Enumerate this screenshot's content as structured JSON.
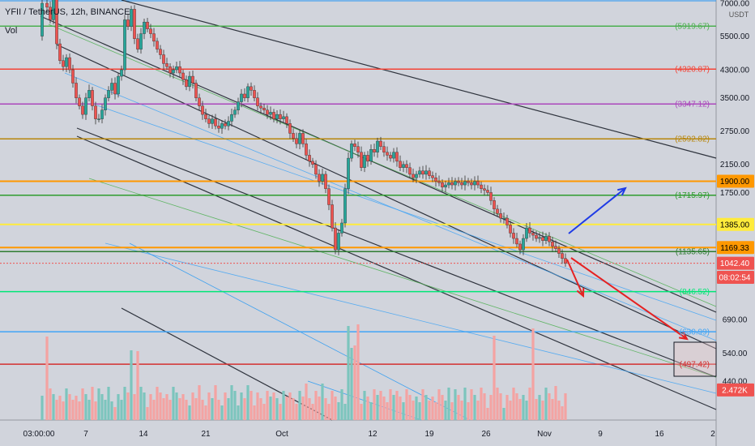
{
  "header": {
    "title": "YFII / TetherUS, 12h, BINANCE",
    "volume_label": "Vol",
    "currency": "USDT"
  },
  "colors": {
    "background": "#d1d4dc",
    "up": "#26a69a",
    "down": "#ef5350",
    "volume_up": "#7cc5bd",
    "volume_down": "#f4a3a2"
  },
  "chart_data": {
    "type": "candlestick",
    "x_axis": {
      "ticks": [
        "03:00:00",
        "7",
        "14",
        "21",
        "Oct",
        "12",
        "19",
        "26",
        "Nov",
        "9",
        "16",
        "2"
      ]
    },
    "y_axis": {
      "scale": "log",
      "ylim": [
        395,
        7000
      ],
      "ticks": [
        "7000.00",
        "5500.00",
        "4300.00",
        "3500.00",
        "2750.00",
        "2150.00",
        "1750.00",
        "690.00",
        "540.00",
        "440.00"
      ]
    },
    "horizontal_levels": [
      {
        "label": "(5919.67)",
        "value": 5919.67,
        "color": "#4caf50"
      },
      {
        "label": "(4320.87)",
        "value": 4320.87,
        "color": "#f44336"
      },
      {
        "label": "(3347.12)",
        "value": 3347.12,
        "color": "#ab47bc"
      },
      {
        "label": "(2592.82)",
        "value": 2592.82,
        "color": "#b8860b"
      },
      {
        "label": "(1715.97)",
        "value": 1715.97,
        "color": "#2e9d2e"
      },
      {
        "label": "(1135.65)",
        "value": 1135.65,
        "color": "#2e7d32"
      },
      {
        "label": "(846.52)",
        "value": 846.52,
        "color": "#00e676"
      },
      {
        "label": "(630.99)",
        "value": 630.99,
        "color": "#42a5f5"
      },
      {
        "label": "(497.42)",
        "value": 497.42,
        "color": "#d32f2f"
      }
    ],
    "badges": [
      {
        "label": "1900.00",
        "value": 1900.0,
        "bg": "#ff9800",
        "fg": "#000000"
      },
      {
        "label": "1385.00",
        "value": 1385.0,
        "bg": "#ffeb3b",
        "fg": "#000000"
      },
      {
        "label": "1169.33",
        "value": 1169.33,
        "bg": "#ff9800",
        "fg": "#000000"
      },
      {
        "label": "1042.40",
        "value": 1042.4,
        "bg": "#ef5350",
        "fg": "#ffffff"
      },
      {
        "label": "08:02:54",
        "value": 940.0,
        "bg": "#ef5350",
        "fg": "#ffffff"
      },
      {
        "label": "2.472K",
        "value": 412.0,
        "bg": "#ef5350",
        "fg": "#ffffff"
      }
    ]
  }
}
